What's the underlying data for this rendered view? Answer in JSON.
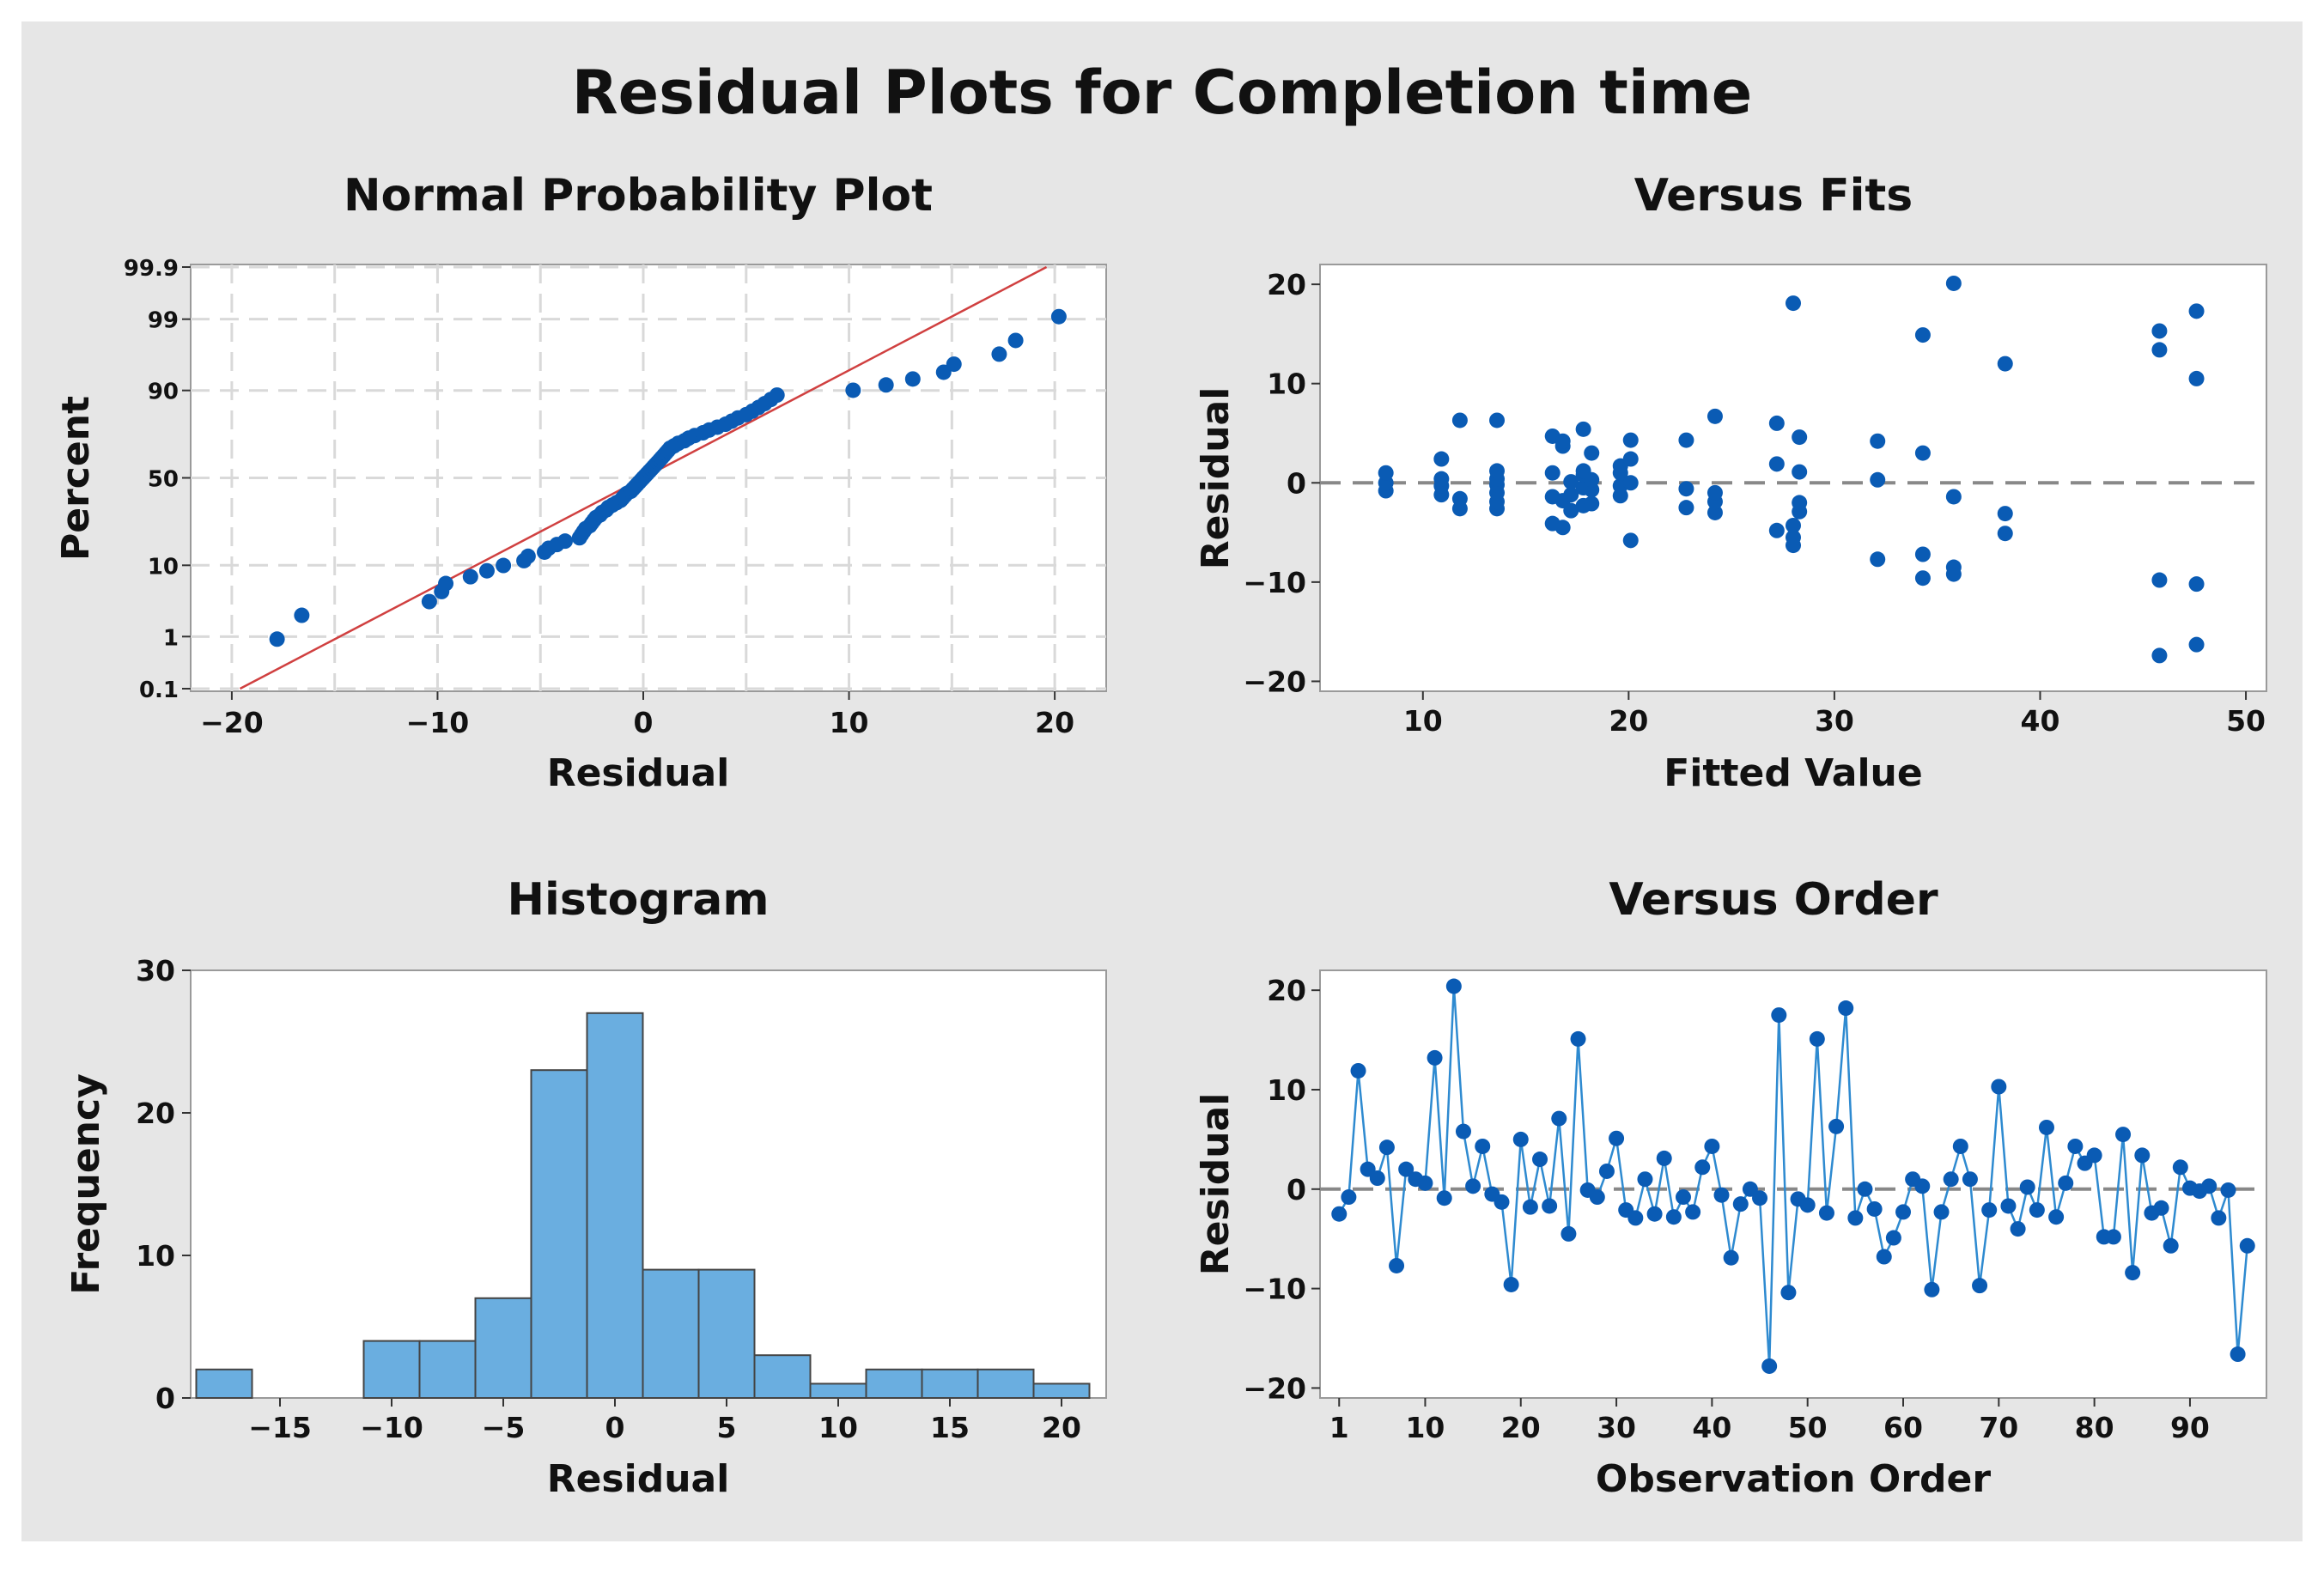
{
  "title": "Residual Plots for Completion time",
  "chart_data": [
    {
      "type": "scatter",
      "id": "normal",
      "title": "Normal Probability Plot",
      "xlabel": "Residual",
      "ylabel": "Percent",
      "xlim": [
        -22,
        22.5
      ],
      "xticks": [
        -20,
        -10,
        0,
        10,
        20
      ],
      "yticks": [
        0.1,
        1,
        10,
        50,
        90,
        99,
        99.9
      ],
      "xtick_labels": [
        "−20",
        "−10",
        "0",
        "10",
        "20"
      ],
      "ytick_labels": [
        "0.1",
        "1",
        "10",
        "50",
        "90",
        "99",
        "99.9"
      ],
      "fit_line": {
        "x": [
          -19.6,
          19.6
        ],
        "percent": [
          0.1,
          99.9
        ]
      },
      "residuals": [
        -17.8,
        -16.6,
        -10.4,
        -9.8,
        -9.6,
        -8.4,
        -7.6,
        -6.8,
        -5.8,
        -5.6,
        -4.8,
        -4.6,
        -4.2,
        -3.8,
        -3.1,
        -3.0,
        -2.9,
        -2.8,
        -2.6,
        -2.5,
        -2.4,
        -2.3,
        -2.1,
        -2.0,
        -1.8,
        -1.7,
        -1.5,
        -1.3,
        -1.1,
        -1.0,
        -0.9,
        -0.8,
        -0.6,
        -0.5,
        -0.4,
        -0.3,
        -0.2,
        -0.1,
        0.0,
        0.1,
        0.2,
        0.3,
        0.4,
        0.5,
        0.6,
        0.7,
        0.8,
        0.9,
        1.0,
        1.1,
        1.2,
        1.3,
        1.5,
        1.7,
        2.0,
        2.2,
        2.5,
        2.9,
        3.2,
        3.6,
        4.0,
        4.3,
        4.6,
        5.0,
        5.3,
        5.6,
        5.9,
        6.2,
        6.5,
        10.2,
        11.8,
        13.1,
        14.6,
        15.1,
        17.3,
        18.1,
        20.2
      ]
    },
    {
      "type": "scatter",
      "id": "fits",
      "title": "Versus Fits",
      "xlabel": "Fitted Value",
      "ylabel": "Residual",
      "xlim": [
        5,
        51
      ],
      "ylim": [
        -21,
        22
      ],
      "xticks": [
        10,
        20,
        30,
        40,
        50
      ],
      "yticks": [
        -20,
        -10,
        0,
        10,
        20
      ],
      "ytick_labels": [
        "−20",
        "−10",
        "0",
        "10",
        "20"
      ],
      "reference_line": 0,
      "points": [
        [
          8.2,
          -0.8
        ],
        [
          8.2,
          0.0
        ],
        [
          8.2,
          1.0
        ],
        [
          10.9,
          -1.2
        ],
        [
          10.9,
          -0.3
        ],
        [
          10.9,
          0.4
        ],
        [
          10.9,
          2.4
        ],
        [
          11.8,
          -2.6
        ],
        [
          11.8,
          -1.6
        ],
        [
          11.8,
          6.3
        ],
        [
          13.6,
          -2.6
        ],
        [
          13.6,
          -1.9
        ],
        [
          13.6,
          -1.0
        ],
        [
          13.6,
          -0.2
        ],
        [
          13.6,
          0.4
        ],
        [
          13.6,
          1.2
        ],
        [
          13.6,
          6.3
        ],
        [
          16.3,
          -4.1
        ],
        [
          16.3,
          -1.4
        ],
        [
          16.3,
          1.0
        ],
        [
          16.3,
          4.7
        ],
        [
          16.8,
          -4.5
        ],
        [
          16.8,
          -1.8
        ],
        [
          16.8,
          3.7
        ],
        [
          16.8,
          4.2
        ],
        [
          17.2,
          -2.8
        ],
        [
          17.2,
          -1.2
        ],
        [
          17.2,
          0.1
        ],
        [
          17.8,
          -2.3
        ],
        [
          17.8,
          -0.5
        ],
        [
          17.8,
          0.8
        ],
        [
          17.8,
          1.2
        ],
        [
          17.8,
          5.4
        ],
        [
          18.2,
          -2.1
        ],
        [
          18.2,
          -0.7
        ],
        [
          18.2,
          0.3
        ],
        [
          18.2,
          3.0
        ],
        [
          19.6,
          -1.3
        ],
        [
          19.6,
          -0.3
        ],
        [
          19.6,
          1.0
        ],
        [
          19.6,
          1.7
        ],
        [
          20.1,
          -5.8
        ],
        [
          20.1,
          0.0
        ],
        [
          20.1,
          2.4
        ],
        [
          20.1,
          4.3
        ],
        [
          22.8,
          -2.5
        ],
        [
          22.8,
          -0.6
        ],
        [
          22.8,
          4.3
        ],
        [
          24.2,
          -3.0
        ],
        [
          24.2,
          -1.9
        ],
        [
          24.2,
          -1.0
        ],
        [
          24.2,
          6.7
        ],
        [
          27.2,
          -4.8
        ],
        [
          27.2,
          1.9
        ],
        [
          27.2,
          6.0
        ],
        [
          28.0,
          -6.3
        ],
        [
          28.0,
          -5.5
        ],
        [
          28.0,
          -4.3
        ],
        [
          28.0,
          18.1
        ],
        [
          28.3,
          -2.9
        ],
        [
          28.3,
          -2.0
        ],
        [
          28.3,
          1.1
        ],
        [
          28.3,
          4.6
        ],
        [
          32.1,
          -7.7
        ],
        [
          32.1,
          0.3
        ],
        [
          32.1,
          4.2
        ],
        [
          34.3,
          -9.6
        ],
        [
          34.3,
          -7.2
        ],
        [
          34.3,
          3.0
        ],
        [
          34.3,
          14.9
        ],
        [
          35.8,
          -9.2
        ],
        [
          35.8,
          -8.5
        ],
        [
          35.8,
          -1.4
        ],
        [
          35.8,
          20.1
        ],
        [
          38.3,
          -5.1
        ],
        [
          38.3,
          -3.1
        ],
        [
          38.3,
          12.0
        ],
        [
          45.8,
          -17.4
        ],
        [
          45.8,
          -9.8
        ],
        [
          45.8,
          13.4
        ],
        [
          45.8,
          15.3
        ],
        [
          47.6,
          -16.3
        ],
        [
          47.6,
          -10.2
        ],
        [
          47.6,
          10.5
        ],
        [
          47.6,
          17.3
        ]
      ]
    },
    {
      "type": "bar",
      "id": "hist",
      "title": "Histogram",
      "xlabel": "Residual",
      "ylabel": "Frequency",
      "xlim": [
        -19,
        22
      ],
      "ylim": [
        0,
        30
      ],
      "xticks": [
        -15,
        -10,
        -5,
        0,
        5,
        10,
        15,
        20
      ],
      "xtick_labels": [
        "−15",
        "−10",
        "−5",
        "0",
        "5",
        "10",
        "15",
        "20"
      ],
      "yticks": [
        0,
        10,
        20,
        30
      ],
      "bin_width": 2.5,
      "bin_centers": [
        -17.5,
        -15,
        -12.5,
        -10,
        -7.5,
        -5,
        -2.5,
        0,
        2.5,
        5,
        7.5,
        10,
        12.5,
        15,
        17.5,
        20
      ],
      "values": [
        2,
        0,
        0,
        4,
        4,
        7,
        23,
        27,
        9,
        9,
        3,
        1,
        2,
        2,
        2,
        1
      ],
      "bar_color": "#6aaee0"
    },
    {
      "type": "line",
      "id": "order",
      "title": "Versus Order",
      "xlabel": "Observation Order",
      "ylabel": "Residual",
      "xlim": [
        -1,
        98
      ],
      "ylim": [
        -21,
        22
      ],
      "xticks": [
        1,
        10,
        20,
        30,
        40,
        50,
        60,
        70,
        80,
        90
      ],
      "yticks": [
        -20,
        -10,
        0,
        10,
        20
      ],
      "ytick_labels": [
        "−20",
        "−10",
        "0",
        "10",
        "20"
      ],
      "reference_line": 0,
      "values": [
        -2.5,
        -0.8,
        11.9,
        2.0,
        1.1,
        4.2,
        -7.7,
        2.0,
        1.0,
        0.6,
        13.2,
        -0.9,
        20.4,
        5.8,
        0.3,
        4.3,
        -0.5,
        -1.3,
        -9.6,
        5.0,
        -1.8,
        3.0,
        -1.7,
        7.1,
        -4.5,
        15.1,
        -0.1,
        -0.8,
        1.8,
        5.1,
        -2.1,
        -2.9,
        1.0,
        -2.5,
        3.1,
        -2.8,
        -0.8,
        -2.3,
        2.2,
        4.3,
        -0.6,
        -6.9,
        -1.5,
        0.0,
        -0.9,
        -17.8,
        17.5,
        -10.4,
        -1.0,
        -1.6,
        15.1,
        -2.4,
        6.3,
        18.2,
        -2.9,
        0.0,
        -2.0,
        -6.8,
        -4.9,
        -2.3,
        1.0,
        0.3,
        -10.1,
        -2.3,
        1.0,
        4.3,
        1.0,
        -9.7,
        -2.1,
        10.3,
        -1.7,
        -4.0,
        0.2,
        -2.1,
        6.2,
        -2.8,
        0.6,
        4.3,
        2.6,
        3.4,
        -4.8,
        -4.8,
        5.5,
        -8.4,
        3.4,
        -2.4,
        -1.9,
        -5.7,
        2.2,
        0.1,
        -0.2,
        0.3,
        -2.9,
        -0.1,
        -16.6,
        -5.7
      ]
    }
  ],
  "colors": {
    "marker": "#0a5bb4",
    "fit_line": "#d04040",
    "ref_line": "#888888",
    "grid": "#d9d9d9",
    "panel_bg": "#e6e6e6"
  }
}
